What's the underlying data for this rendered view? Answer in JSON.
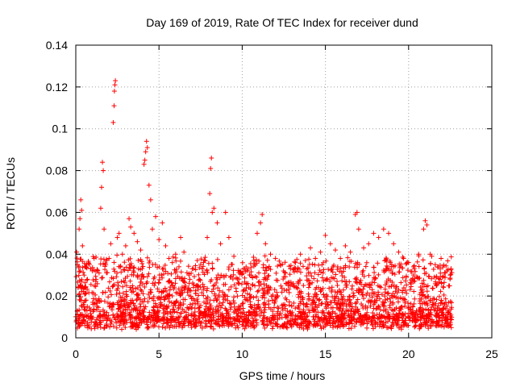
{
  "chart_data": {
    "type": "scatter",
    "title": "Day 169 of 2019, Rate Of TEC Index for receiver dund",
    "xlabel": "GPS time / hours",
    "ylabel": "ROTI / TECUs",
    "xlim": [
      0,
      25
    ],
    "ylim": [
      0,
      0.14
    ],
    "xticks": [
      0,
      5,
      10,
      15,
      20,
      25
    ],
    "xtick_labels": [
      "0",
      "5",
      "10",
      "15",
      "20",
      "25"
    ],
    "yticks": [
      0,
      0.02,
      0.04,
      0.06,
      0.08,
      0.1,
      0.12,
      0.14
    ],
    "ytick_labels": [
      "0",
      "0.02",
      "0.04",
      "0.06",
      "0.08",
      "0.1",
      "0.12",
      "0.14"
    ],
    "grid": true,
    "marker": "+",
    "color": "#ff0000",
    "data_extent_hours": [
      0,
      22.6
    ],
    "series": [
      {
        "name": "ROTI",
        "points": [
          [
            0.05,
            0.041
          ],
          [
            0.1,
            0.035
          ],
          [
            0.2,
            0.052
          ],
          [
            0.25,
            0.057
          ],
          [
            0.3,
            0.066
          ],
          [
            0.35,
            0.061
          ],
          [
            0.4,
            0.044
          ],
          [
            0.5,
            0.03
          ],
          [
            0.7,
            0.028
          ],
          [
            0.9,
            0.033
          ],
          [
            1.1,
            0.038
          ],
          [
            1.2,
            0.027
          ],
          [
            1.4,
            0.031
          ],
          [
            1.5,
            0.062
          ],
          [
            1.55,
            0.072
          ],
          [
            1.6,
            0.084
          ],
          [
            1.65,
            0.08
          ],
          [
            1.7,
            0.052
          ],
          [
            1.8,
            0.035
          ],
          [
            2.0,
            0.038
          ],
          [
            2.1,
            0.045
          ],
          [
            2.25,
            0.103
          ],
          [
            2.3,
            0.111
          ],
          [
            2.32,
            0.118
          ],
          [
            2.35,
            0.121
          ],
          [
            2.38,
            0.123
          ],
          [
            2.5,
            0.048
          ],
          [
            2.6,
            0.05
          ],
          [
            2.8,
            0.04
          ],
          [
            3.0,
            0.044
          ],
          [
            3.2,
            0.057
          ],
          [
            3.3,
            0.053
          ],
          [
            3.5,
            0.05
          ],
          [
            3.7,
            0.046
          ],
          [
            3.9,
            0.042
          ],
          [
            4.1,
            0.083
          ],
          [
            4.15,
            0.085
          ],
          [
            4.2,
            0.089
          ],
          [
            4.25,
            0.094
          ],
          [
            4.3,
            0.091
          ],
          [
            4.4,
            0.073
          ],
          [
            4.5,
            0.066
          ],
          [
            4.6,
            0.052
          ],
          [
            4.8,
            0.058
          ],
          [
            5.0,
            0.047
          ],
          [
            5.2,
            0.055
          ],
          [
            5.4,
            0.044
          ],
          [
            5.6,
            0.038
          ],
          [
            5.8,
            0.036
          ],
          [
            6.0,
            0.04
          ],
          [
            6.2,
            0.034
          ],
          [
            6.3,
            0.048
          ],
          [
            6.5,
            0.041
          ],
          [
            6.8,
            0.03
          ],
          [
            7.0,
            0.033
          ],
          [
            7.3,
            0.037
          ],
          [
            7.6,
            0.033
          ],
          [
            7.9,
            0.048
          ],
          [
            8.05,
            0.069
          ],
          [
            8.1,
            0.081
          ],
          [
            8.15,
            0.086
          ],
          [
            8.2,
            0.06
          ],
          [
            8.3,
            0.062
          ],
          [
            8.5,
            0.055
          ],
          [
            8.7,
            0.045
          ],
          [
            9.0,
            0.06
          ],
          [
            9.2,
            0.048
          ],
          [
            9.5,
            0.039
          ],
          [
            9.8,
            0.026
          ],
          [
            10.1,
            0.023
          ],
          [
            10.4,
            0.024
          ],
          [
            10.7,
            0.037
          ],
          [
            10.9,
            0.05
          ],
          [
            11.1,
            0.055
          ],
          [
            11.2,
            0.059
          ],
          [
            11.4,
            0.045
          ],
          [
            11.7,
            0.04
          ],
          [
            12.0,
            0.038
          ],
          [
            12.3,
            0.035
          ],
          [
            12.6,
            0.031
          ],
          [
            12.9,
            0.033
          ],
          [
            13.2,
            0.036
          ],
          [
            13.5,
            0.04
          ],
          [
            13.8,
            0.037
          ],
          [
            14.1,
            0.043
          ],
          [
            14.4,
            0.038
          ],
          [
            14.7,
            0.041
          ],
          [
            15.0,
            0.049
          ],
          [
            15.3,
            0.045
          ],
          [
            15.6,
            0.042
          ],
          [
            15.9,
            0.038
          ],
          [
            16.2,
            0.044
          ],
          [
            16.5,
            0.041
          ],
          [
            16.8,
            0.059
          ],
          [
            16.9,
            0.06
          ],
          [
            17.0,
            0.052
          ],
          [
            17.3,
            0.043
          ],
          [
            17.6,
            0.045
          ],
          [
            17.9,
            0.05
          ],
          [
            18.2,
            0.048
          ],
          [
            18.5,
            0.052
          ],
          [
            18.8,
            0.05
          ],
          [
            19.1,
            0.045
          ],
          [
            19.4,
            0.041
          ],
          [
            19.7,
            0.038
          ],
          [
            20.0,
            0.036
          ],
          [
            20.3,
            0.034
          ],
          [
            20.6,
            0.04
          ],
          [
            20.9,
            0.052
          ],
          [
            21.0,
            0.056
          ],
          [
            21.1,
            0.054
          ],
          [
            21.3,
            0.04
          ],
          [
            21.6,
            0.035
          ],
          [
            21.9,
            0.033
          ],
          [
            22.2,
            0.031
          ],
          [
            22.5,
            0.03
          ]
        ]
      }
    ]
  }
}
